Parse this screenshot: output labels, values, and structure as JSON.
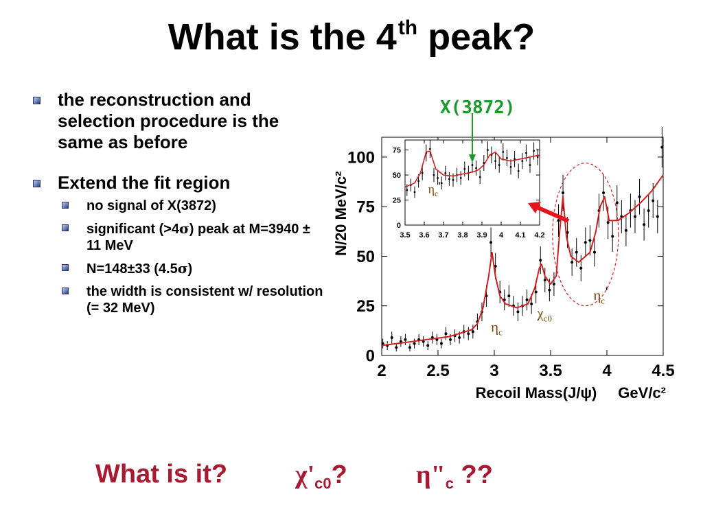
{
  "slide": {
    "title_main": "What is the 4",
    "title_sup": "th",
    "title_end": " peak?"
  },
  "bullets": {
    "first": "the reconstruction and selection procedure is the same as before",
    "second": "Extend the fit region",
    "sub": {
      "no_signal": "no signal of X(3872)",
      "significant_pre": "significant (>4",
      "sigma": "σ",
      "significant_post": ") peak at M=3940 ± 11 MeV",
      "n_pre": "N=148±33 (4.5",
      "n_post": ")",
      "width": "the width is consistent w/ resolution (= 32 MeV)"
    }
  },
  "annotation": {
    "x3872": "X(3872)"
  },
  "bottom": {
    "q1": "What is it?",
    "chi": "χ",
    "chi_sub": "c0",
    "chi_prime": "'",
    "chi_q": "?",
    "eta": "η",
    "eta_sub": "c",
    "eta_prime": "\"",
    "eta_q": " ??"
  },
  "colors": {
    "accent": "#a81a32",
    "annotation": "#1c9a2e",
    "fit": "#cc2020",
    "arrow": "#e8141c",
    "labels": "#7a4a10"
  },
  "chart_data": [
    {
      "type": "scatter",
      "xlabel": "Recoil Mass(J/ψ)",
      "xunit": "GeV/c²",
      "ylabel": "N/20 MeV/c²",
      "xlim": [
        2,
        4.5
      ],
      "ylim": [
        0,
        110
      ],
      "xticks": [
        "2",
        "2.5",
        "3",
        "3.5",
        "4",
        "4.5"
      ],
      "yticks": [
        "0",
        "25",
        "50",
        "75",
        "100"
      ],
      "grid": false,
      "series": [
        {
          "x": [
            2.01,
            2.05,
            2.09,
            2.13,
            2.17,
            2.21,
            2.25,
            2.29,
            2.33,
            2.37,
            2.41,
            2.45,
            2.49,
            2.53,
            2.57,
            2.61,
            2.65,
            2.69,
            2.73,
            2.77,
            2.81,
            2.85,
            2.89,
            2.93,
            2.97,
            3.01,
            3.05,
            3.09,
            3.13,
            3.17,
            3.21,
            3.25,
            3.29,
            3.33,
            3.37,
            3.41,
            3.45,
            3.49,
            3.53,
            3.57,
            3.61,
            3.65,
            3.69,
            3.73,
            3.77,
            3.81,
            3.85,
            3.89,
            3.93,
            3.97,
            4.01,
            4.05,
            4.09,
            4.13,
            4.17,
            4.21,
            4.25,
            4.29,
            4.33,
            4.37,
            4.41,
            4.45,
            4.49
          ],
          "y": [
            6,
            5,
            9,
            4,
            7,
            8,
            4,
            6,
            8,
            7,
            5,
            9,
            8,
            6,
            11,
            8,
            10,
            9,
            12,
            11,
            12,
            17,
            22,
            30,
            57,
            45,
            32,
            28,
            30,
            25,
            22,
            25,
            28,
            26,
            32,
            48,
            38,
            33,
            36,
            68,
            82,
            62,
            47,
            52,
            44,
            57,
            58,
            52,
            73,
            82,
            67,
            60,
            77,
            70,
            63,
            73,
            70,
            80,
            66,
            73,
            78,
            70,
            105
          ]
        }
      ],
      "fit": {
        "x": [
          2.0,
          2.2,
          2.4,
          2.6,
          2.8,
          2.85,
          2.9,
          2.95,
          2.98,
          3.01,
          3.05,
          3.1,
          3.2,
          3.3,
          3.36,
          3.4,
          3.42,
          3.45,
          3.5,
          3.55,
          3.58,
          3.61,
          3.64,
          3.68,
          3.75,
          3.85,
          3.9,
          3.94,
          3.98,
          4.02,
          4.1,
          4.2,
          4.3,
          4.4,
          4.5
        ],
        "y": [
          5,
          6.5,
          8,
          9.5,
          13,
          16,
          24,
          40,
          52,
          40,
          30,
          26,
          24,
          26,
          34,
          44,
          46,
          40,
          36,
          40,
          62,
          80,
          60,
          50,
          47,
          52,
          62,
          75,
          80,
          68,
          68,
          72,
          77,
          83,
          91
        ]
      },
      "labels": [
        {
          "text": "η",
          "sub": "c",
          "x": 2.97,
          "y": 12
        },
        {
          "text": "χ",
          "sub": "c0",
          "x": 3.38,
          "y": 19
        },
        {
          "text": "η",
          "sub": "c",
          "prime": "'",
          "x": 3.88,
          "y": 28
        }
      ]
    },
    {
      "type": "scatter",
      "xlim": [
        3.5,
        4.2
      ],
      "ylim": [
        0,
        85
      ],
      "xticks": [
        "3.5",
        "3.6",
        "3.7",
        "3.8",
        "3.9",
        "4",
        "4.1",
        "4.2"
      ],
      "yticks": [
        "0",
        "25",
        "50",
        "75"
      ],
      "series": [
        {
          "x": [
            3.51,
            3.53,
            3.55,
            3.57,
            3.59,
            3.61,
            3.63,
            3.65,
            3.67,
            3.69,
            3.71,
            3.73,
            3.75,
            3.77,
            3.79,
            3.81,
            3.83,
            3.85,
            3.87,
            3.89,
            3.91,
            3.93,
            3.95,
            3.97,
            3.99,
            4.01,
            4.03,
            4.05,
            4.07,
            4.09,
            4.11,
            4.13,
            4.15,
            4.17,
            4.19
          ],
          "y": [
            35,
            40,
            33,
            44,
            52,
            72,
            76,
            50,
            47,
            42,
            52,
            46,
            45,
            50,
            47,
            56,
            52,
            60,
            57,
            48,
            62,
            75,
            70,
            64,
            60,
            73,
            67,
            58,
            66,
            54,
            64,
            72,
            60,
            74,
            68
          ]
        }
      ],
      "fit": {
        "x": [
          3.5,
          3.55,
          3.58,
          3.61,
          3.63,
          3.66,
          3.7,
          3.75,
          3.8,
          3.85,
          3.88,
          3.91,
          3.94,
          3.97,
          4.0,
          4.05,
          4.1,
          4.15,
          4.2
        ],
        "y": [
          38,
          42,
          52,
          73,
          74,
          56,
          50,
          49,
          51,
          53,
          55,
          60,
          70,
          73,
          66,
          64,
          66,
          68,
          70
        ]
      },
      "labels": [
        {
          "text": "η",
          "sub": "c",
          "prime": "'",
          "x": 3.62,
          "y": 32
        }
      ]
    }
  ]
}
